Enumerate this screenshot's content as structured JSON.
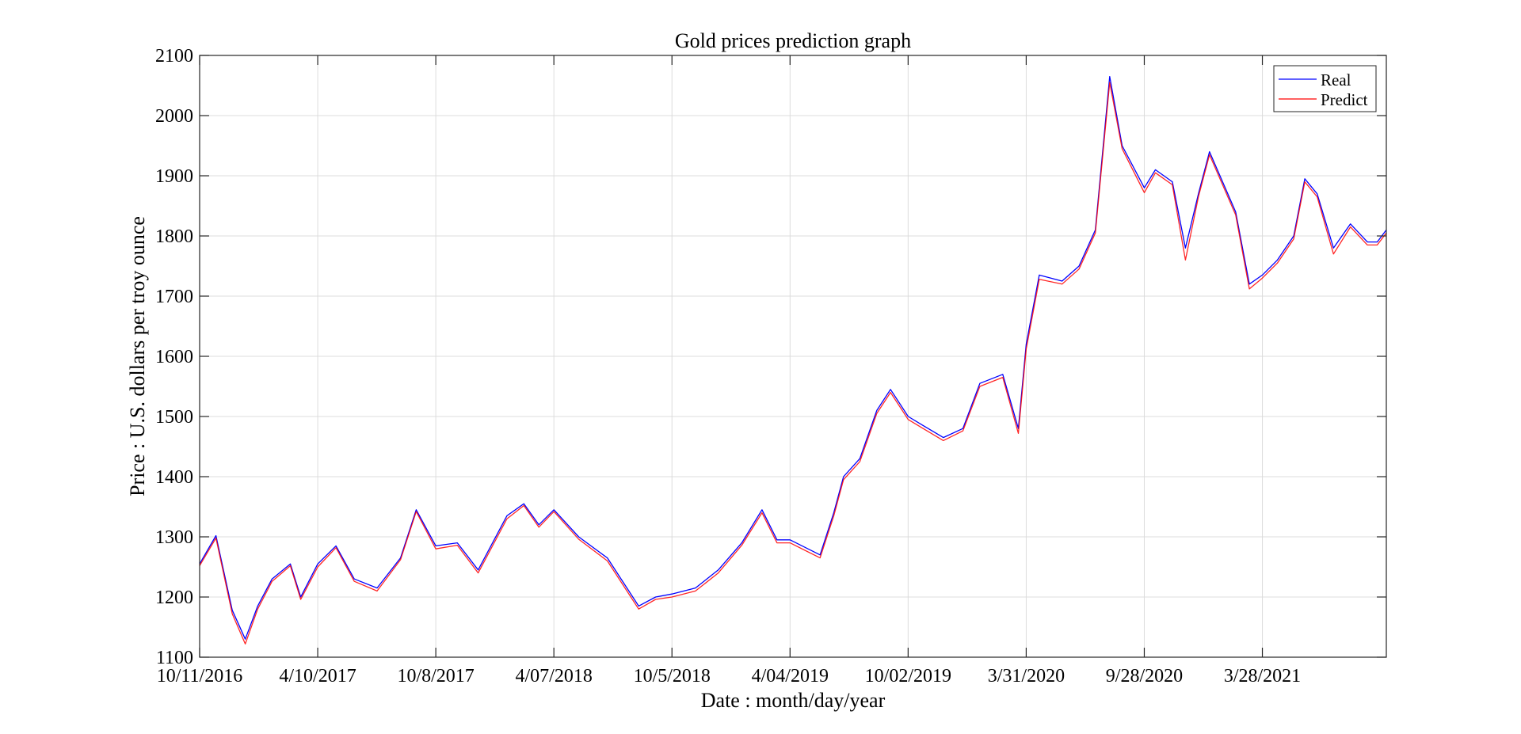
{
  "chart_data": {
    "type": "line",
    "title": "Gold prices prediction graph",
    "xlabel": "Date : month/day/year",
    "ylabel": "Price : U.S. dollars per troy ounce",
    "ylim": [
      1100,
      2100
    ],
    "yticks": [
      1100,
      1200,
      1300,
      1400,
      1500,
      1600,
      1700,
      1800,
      1900,
      2000,
      2100
    ],
    "xlim": [
      "2016-10-11",
      "2021-10-04"
    ],
    "xticks": [
      {
        "date": "2016-10-11",
        "label": "10/11/2016"
      },
      {
        "date": "2017-04-10",
        "label": "4/10/2017"
      },
      {
        "date": "2017-10-08",
        "label": "10/8/2017"
      },
      {
        "date": "2018-04-07",
        "label": "4/07/2018"
      },
      {
        "date": "2018-10-05",
        "label": "10/5/2018"
      },
      {
        "date": "2019-04-04",
        "label": "4/04/2019"
      },
      {
        "date": "2019-10-02",
        "label": "10/02/2019"
      },
      {
        "date": "2020-03-31",
        "label": "3/31/2020"
      },
      {
        "date": "2020-09-28",
        "label": "9/28/2020"
      },
      {
        "date": "2021-03-28",
        "label": "3/28/2021"
      }
    ],
    "grid": true,
    "legend_position": "top-right",
    "x": [
      "2016-10-11",
      "2016-11-05",
      "2016-11-30",
      "2016-12-20",
      "2017-01-08",
      "2017-01-30",
      "2017-02-27",
      "2017-03-15",
      "2017-04-10",
      "2017-05-08",
      "2017-06-05",
      "2017-07-10",
      "2017-08-15",
      "2017-09-08",
      "2017-10-08",
      "2017-11-10",
      "2017-12-12",
      "2018-01-25",
      "2018-02-20",
      "2018-03-15",
      "2018-04-07",
      "2018-05-15",
      "2018-06-28",
      "2018-08-15",
      "2018-09-10",
      "2018-10-05",
      "2018-11-10",
      "2018-12-15",
      "2019-01-20",
      "2019-02-20",
      "2019-03-15",
      "2019-04-04",
      "2019-05-20",
      "2019-06-10",
      "2019-06-25",
      "2019-07-20",
      "2019-08-15",
      "2019-09-05",
      "2019-10-02",
      "2019-10-25",
      "2019-11-25",
      "2019-12-25",
      "2020-01-20",
      "2020-02-24",
      "2020-03-19",
      "2020-03-31",
      "2020-04-20",
      "2020-05-25",
      "2020-06-20",
      "2020-07-15",
      "2020-08-06",
      "2020-08-25",
      "2020-09-28",
      "2020-10-15",
      "2020-11-10",
      "2020-11-30",
      "2020-12-20",
      "2021-01-06",
      "2021-02-15",
      "2021-03-08",
      "2021-03-28",
      "2021-04-20",
      "2021-05-15",
      "2021-06-01",
      "2021-06-20",
      "2021-07-15",
      "2021-08-10",
      "2021-09-05",
      "2021-09-20",
      "2021-10-04"
    ],
    "series": [
      {
        "name": "Real",
        "color": "#0000ff",
        "values": [
          1255,
          1302,
          1178,
          1130,
          1185,
          1230,
          1255,
          1200,
          1255,
          1285,
          1230,
          1215,
          1265,
          1345,
          1285,
          1290,
          1245,
          1335,
          1355,
          1320,
          1345,
          1300,
          1265,
          1185,
          1200,
          1205,
          1215,
          1245,
          1290,
          1345,
          1295,
          1295,
          1270,
          1340,
          1400,
          1430,
          1510,
          1545,
          1500,
          1485,
          1465,
          1480,
          1555,
          1570,
          1480,
          1620,
          1735,
          1725,
          1750,
          1810,
          2065,
          1950,
          1880,
          1910,
          1890,
          1780,
          1870,
          1940,
          1840,
          1720,
          1735,
          1760,
          1800,
          1895,
          1870,
          1780,
          1820,
          1790,
          1790,
          1810
        ]
      },
      {
        "name": "Predict",
        "color": "#ff0000",
        "values": [
          1252,
          1298,
          1172,
          1122,
          1180,
          1226,
          1252,
          1196,
          1250,
          1282,
          1226,
          1210,
          1262,
          1342,
          1280,
          1286,
          1240,
          1330,
          1352,
          1316,
          1342,
          1296,
          1260,
          1180,
          1196,
          1200,
          1210,
          1240,
          1286,
          1340,
          1290,
          1290,
          1265,
          1335,
          1395,
          1425,
          1505,
          1540,
          1495,
          1480,
          1460,
          1476,
          1550,
          1565,
          1472,
          1612,
          1728,
          1720,
          1745,
          1805,
          2055,
          1945,
          1872,
          1905,
          1885,
          1760,
          1865,
          1935,
          1835,
          1712,
          1730,
          1755,
          1795,
          1890,
          1865,
          1770,
          1815,
          1785,
          1785,
          1805
        ]
      }
    ]
  }
}
